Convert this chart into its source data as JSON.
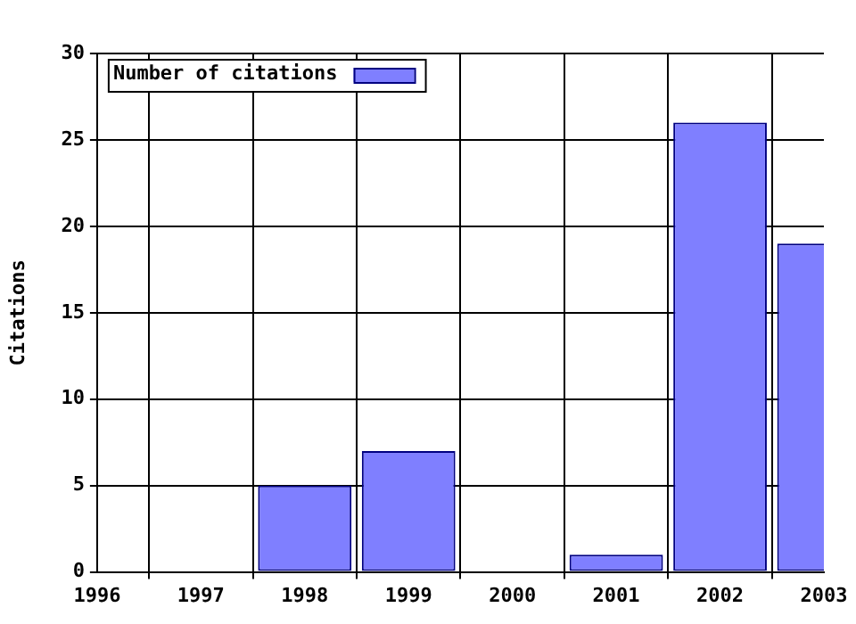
{
  "chart_data": {
    "type": "bar",
    "ylabel": "Citations",
    "x": [
      1998,
      1999,
      2001,
      2002,
      2003
    ],
    "series": [
      {
        "name": "Number of citations",
        "color": "#7f7fff",
        "values": [
          5,
          7,
          1,
          26,
          19
        ]
      }
    ],
    "xlim": [
      1996,
      2003
    ],
    "xticks": [
      1996,
      1997,
      1998,
      1999,
      2000,
      2001,
      2002,
      2003
    ],
    "ylim": [
      0,
      30
    ],
    "yticks": [
      0,
      5,
      10,
      15,
      20,
      25,
      30
    ],
    "grid": true,
    "legend": "top left"
  }
}
